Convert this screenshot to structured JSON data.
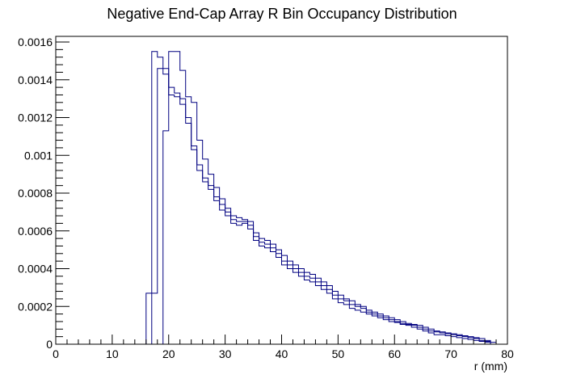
{
  "chart_data": {
    "type": "line",
    "style": "step-histogram",
    "title": "Negative End-Cap Array R Bin Occupancy Distribution",
    "xlabel": "r (mm)",
    "ylabel": "",
    "xlim": [
      0,
      80
    ],
    "ylim": [
      0,
      0.00163
    ],
    "xticks": [
      "0",
      "10",
      "20",
      "30",
      "40",
      "50",
      "60",
      "70",
      "80"
    ],
    "yticks": [
      "0",
      "0.0002",
      "0.0004",
      "0.0006",
      "0.0008",
      "0.001",
      "0.0012",
      "0.0014",
      "0.0016"
    ],
    "bin_width": 1,
    "bin_start": 0,
    "grid": false,
    "legend": "none",
    "line_color": "#000080",
    "series": [
      {
        "values": [
          0,
          0,
          0,
          0,
          0,
          0,
          0,
          0,
          0,
          0,
          0,
          0,
          0,
          0,
          0,
          0,
          0.00027,
          0.00155,
          0.00152,
          0.00143,
          0.00132,
          0.00131,
          0.00127,
          0.00117,
          0.00103,
          0.00092,
          0.00086,
          0.00082,
          0.00076,
          0.00071,
          0.00068,
          0.00064,
          0.00063,
          0.00064,
          0.00061,
          0.00055,
          0.00052,
          0.00051,
          0.00049,
          0.00046,
          0.00042,
          0.0004,
          0.00038,
          0.00036,
          0.00034,
          0.00033,
          0.00031,
          0.00029,
          0.00027,
          0.00024,
          0.00022,
          0.00021,
          0.00019,
          0.00018,
          0.00017,
          0.00016,
          0.00015,
          0.00014,
          0.00013,
          0.00012,
          0.000115,
          0.000105,
          0.0001,
          9e-05,
          8e-05,
          7e-05,
          6e-05,
          5e-05,
          5e-05,
          4.5e-05,
          4e-05,
          3.5e-05,
          3e-05,
          2.5e-05,
          2e-05,
          1.5e-05,
          1e-05,
          0
        ]
      },
      {
        "values": [
          0,
          0,
          0,
          0,
          0,
          0,
          0,
          0,
          0,
          0,
          0,
          0,
          0,
          0,
          0,
          0,
          0,
          0.00027,
          0.00146,
          0.00146,
          0.00136,
          0.00133,
          0.0013,
          0.0012,
          0.00105,
          0.00095,
          0.00088,
          0.00084,
          0.00078,
          0.00074,
          0.0007,
          0.00066,
          0.00065,
          0.00065,
          0.00063,
          0.00057,
          0.00054,
          0.00053,
          0.00051,
          0.00048,
          0.00044,
          0.00042,
          0.0004,
          0.00038,
          0.00036,
          0.00035,
          0.00033,
          0.00031,
          0.00029,
          0.00026,
          0.00024,
          0.00023,
          0.00021,
          0.0002,
          0.00019,
          0.00017,
          0.00016,
          0.00015,
          0.00014,
          0.00013,
          0.00012,
          0.00011,
          0.000105,
          0.0001,
          9e-05,
          8e-05,
          7e-05,
          6.5e-05,
          6e-05,
          5.5e-05,
          5e-05,
          4.5e-05,
          4e-05,
          3.5e-05,
          3e-05,
          2e-05,
          1.5e-05,
          0
        ]
      },
      {
        "values": [
          0,
          0,
          0,
          0,
          0,
          0,
          0,
          0,
          0,
          0,
          0,
          0,
          0,
          0,
          0,
          0,
          0,
          0,
          0,
          0.00113,
          0.00155,
          0.00155,
          0.00145,
          0.00131,
          0.00128,
          0.00108,
          0.00098,
          0.0009,
          0.00083,
          0.00077,
          0.00072,
          0.00068,
          0.00067,
          0.00066,
          0.00065,
          0.00059,
          0.00056,
          0.00055,
          0.00053,
          0.0005,
          0.00047,
          0.00044,
          0.00042,
          0.0004,
          0.00038,
          0.00037,
          0.00035,
          0.00033,
          0.00031,
          0.00028,
          0.00026,
          0.00024,
          0.00023,
          0.00021,
          0.0002,
          0.00018,
          0.00017,
          0.00016,
          0.00015,
          0.00014,
          0.00013,
          0.00012,
          0.00011,
          0.000105,
          0.0001,
          9e-05,
          8e-05,
          7e-05,
          6.5e-05,
          6e-05,
          5.5e-05,
          5e-05,
          4.5e-05,
          4e-05,
          3.5e-05,
          3e-05,
          2e-05,
          1e-05
        ]
      }
    ]
  }
}
